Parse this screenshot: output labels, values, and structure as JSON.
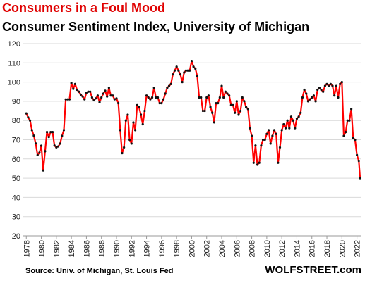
{
  "chart_data": {
    "type": "line",
    "title": "Consumers in a Foul Mood",
    "subtitle": "Consumer Sentiment Index, University of Michigan",
    "source": "Source: Univ. of Michigan, St. Louis Fed",
    "brand": "WOLFSTREET.com",
    "title_color": "#e00000",
    "line_color": "#ff0000",
    "marker_color": "#111111",
    "grid": true,
    "xlim": [
      1977.6,
      2022.6
    ],
    "ylim": [
      20,
      120
    ],
    "yticks": [
      20,
      30,
      40,
      50,
      60,
      70,
      80,
      90,
      100,
      110,
      120
    ],
    "xticks": [
      1978,
      1980,
      1982,
      1984,
      1986,
      1988,
      1990,
      1992,
      1994,
      1996,
      1998,
      2000,
      2002,
      2004,
      2006,
      2008,
      2010,
      2012,
      2014,
      2016,
      2018,
      2020,
      2022
    ],
    "x": [
      1978,
      1978.25,
      1978.5,
      1978.75,
      1979,
      1979.25,
      1979.5,
      1979.75,
      1980,
      1980.25,
      1980.5,
      1980.75,
      1981,
      1981.25,
      1981.5,
      1981.75,
      1982,
      1982.25,
      1982.5,
      1982.75,
      1983,
      1983.25,
      1983.5,
      1983.75,
      1984,
      1984.25,
      1984.5,
      1984.75,
      1985,
      1985.25,
      1985.5,
      1985.75,
      1986,
      1986.25,
      1986.5,
      1986.75,
      1987,
      1987.25,
      1987.5,
      1987.75,
      1988,
      1988.25,
      1988.5,
      1988.75,
      1989,
      1989.25,
      1989.5,
      1989.75,
      1990,
      1990.25,
      1990.5,
      1990.75,
      1991,
      1991.25,
      1991.5,
      1991.75,
      1992,
      1992.25,
      1992.5,
      1992.75,
      1993,
      1993.25,
      1993.5,
      1993.75,
      1994,
      1994.25,
      1994.5,
      1994.75,
      1995,
      1995.25,
      1995.5,
      1995.75,
      1996,
      1996.25,
      1996.5,
      1996.75,
      1997,
      1997.25,
      1997.5,
      1997.75,
      1998,
      1998.25,
      1998.5,
      1998.75,
      1999,
      1999.25,
      1999.5,
      1999.75,
      2000,
      2000.25,
      2000.5,
      2000.75,
      2001,
      2001.25,
      2001.5,
      2001.75,
      2002,
      2002.25,
      2002.5,
      2002.75,
      2003,
      2003.25,
      2003.5,
      2003.75,
      2004,
      2004.25,
      2004.5,
      2004.75,
      2005,
      2005.25,
      2005.5,
      2005.75,
      2006,
      2006.25,
      2006.5,
      2006.75,
      2007,
      2007.25,
      2007.5,
      2007.75,
      2008,
      2008.25,
      2008.5,
      2008.75,
      2009,
      2009.25,
      2009.5,
      2009.75,
      2010,
      2010.25,
      2010.5,
      2010.75,
      2011,
      2011.25,
      2011.5,
      2011.75,
      2012,
      2012.25,
      2012.5,
      2012.75,
      2013,
      2013.25,
      2013.5,
      2013.75,
      2014,
      2014.25,
      2014.5,
      2014.75,
      2015,
      2015.25,
      2015.5,
      2015.75,
      2016,
      2016.25,
      2016.5,
      2016.75,
      2017,
      2017.25,
      2017.5,
      2017.75,
      2018,
      2018.25,
      2018.5,
      2018.75,
      2019,
      2019.25,
      2019.5,
      2019.75,
      2020,
      2020.25,
      2020.5,
      2020.75,
      2021,
      2021.25,
      2021.5,
      2021.75,
      2022,
      2022.25,
      2022.42
    ],
    "values": [
      83.7,
      81.6,
      80,
      75,
      72.1,
      68.1,
      62,
      63.3,
      66.9,
      54,
      64,
      74,
      71.4,
      74,
      74,
      67,
      66,
      66.5,
      68,
      72,
      75,
      91,
      91,
      91,
      99.5,
      96.5,
      99,
      96,
      95,
      93.5,
      92.5,
      91,
      94.5,
      95,
      95,
      92,
      90.5,
      91.5,
      93,
      89.5,
      92,
      94,
      95.5,
      92.5,
      97,
      93,
      93,
      91,
      91.5,
      89,
      75,
      63,
      66,
      80,
      83,
      70,
      68,
      79,
      75,
      88,
      87,
      83,
      78,
      85,
      93,
      92,
      91,
      92,
      97,
      92,
      92,
      89,
      89,
      91,
      94,
      97,
      98,
      99,
      104,
      106,
      108,
      106,
      104,
      100,
      105,
      106,
      106,
      106,
      111,
      108,
      107,
      103,
      92,
      92,
      85,
      85,
      92,
      93,
      87,
      84,
      79,
      89,
      89,
      92,
      98,
      92,
      95,
      94,
      93,
      88,
      88,
      84,
      90,
      83,
      85,
      92,
      90,
      87,
      86,
      76,
      72,
      58,
      67,
      57,
      58,
      67,
      70,
      70,
      73,
      75,
      68,
      72,
      75,
      73,
      58,
      66,
      75,
      78,
      76,
      80,
      76,
      82,
      80,
      76,
      81,
      82,
      84,
      92,
      96,
      94,
      90,
      91,
      92,
      93,
      90,
      96,
      97,
      96,
      95,
      98,
      99,
      98,
      99,
      98,
      93,
      98,
      92,
      99,
      100,
      72,
      74,
      80,
      80,
      86,
      71,
      70,
      62,
      59,
      50
    ]
  }
}
